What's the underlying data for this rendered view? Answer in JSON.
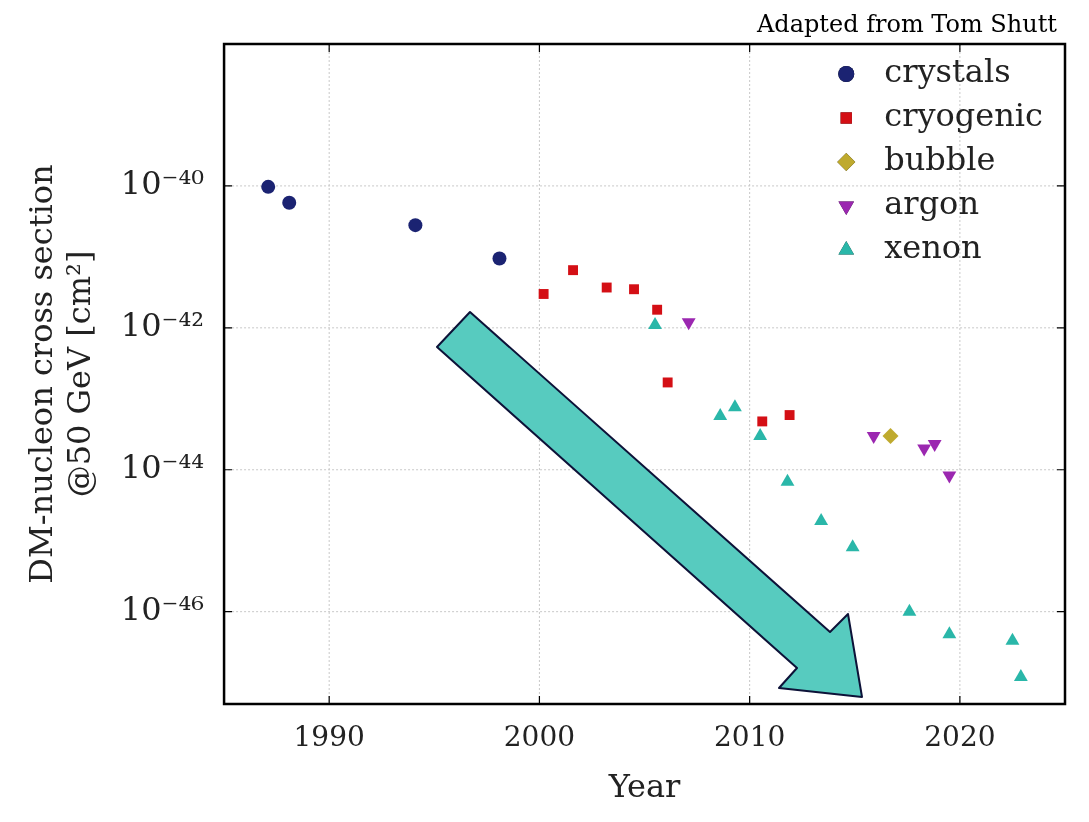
{
  "chart_data": {
    "type": "scatter",
    "xlabel": "Year",
    "ylabel": "DM-nucleon cross section\n@50 GeV [cm²]",
    "annotations": [
      "Adapted from Tom Shutt"
    ],
    "log": "y",
    "xlim": [
      1985,
      2025
    ],
    "xticks": [
      1990,
      2000,
      2010,
      2020
    ],
    "ylim": [
      5e-48,
      1e-38
    ],
    "yticks": [
      {
        "value": 1e-40,
        "label": "10⁻⁴⁰"
      },
      {
        "value": 1e-42,
        "label": "10⁻⁴²"
      },
      {
        "value": 1e-44,
        "label": "10⁻⁴⁴"
      },
      {
        "value": 1e-46,
        "label": "10⁻⁴⁶"
      }
    ],
    "grid": true,
    "legend": "top right",
    "series": [
      {
        "name": "crystals",
        "color": "#1b2372",
        "marker": "circle",
        "x": [
          1987.1,
          1988.1,
          1994.1,
          1998.1
        ],
        "values": [
          9.7e-41,
          5.8e-41,
          2.8e-41,
          9.5e-42
        ]
      },
      {
        "name": "cryogenic",
        "color": "#d40f15",
        "marker": "square",
        "x": [
          2000.2,
          2001.6,
          2003.2,
          2004.5,
          2005.6,
          2006.1,
          2010.6,
          2011.9
        ],
        "values": [
          3e-42,
          6.5e-42,
          3.7e-42,
          3.5e-42,
          1.8e-42,
          1.7e-43,
          4.8e-44,
          5.9e-44
        ]
      },
      {
        "name": "bubble",
        "color": "#bfaa2e",
        "marker": "diamond",
        "x": [
          2016.7
        ],
        "values": [
          3e-44
        ]
      },
      {
        "name": "argon",
        "color": "#9b27b0",
        "marker": "triangle-down",
        "x": [
          2007.1,
          2015.9,
          2018.3,
          2018.8,
          2019.5
        ],
        "values": [
          1.2e-42,
          3e-44,
          2e-44,
          2.3e-44,
          8.3e-45
        ]
      },
      {
        "name": "xenon",
        "color": "#2ab7a9",
        "marker": "triangle",
        "x": [
          2005.5,
          2008.6,
          2009.3,
          2010.5,
          2011.8,
          2013.4,
          2014.9,
          2017.6,
          2019.5,
          2022.5,
          2022.9
        ],
        "values": [
          1.1e-42,
          5.7e-44,
          7.6e-44,
          3e-44,
          6.8e-45,
          1.9e-45,
          8.1e-46,
          1e-46,
          4.8e-47,
          3.9e-47,
          1.2e-47
        ]
      }
    ]
  }
}
